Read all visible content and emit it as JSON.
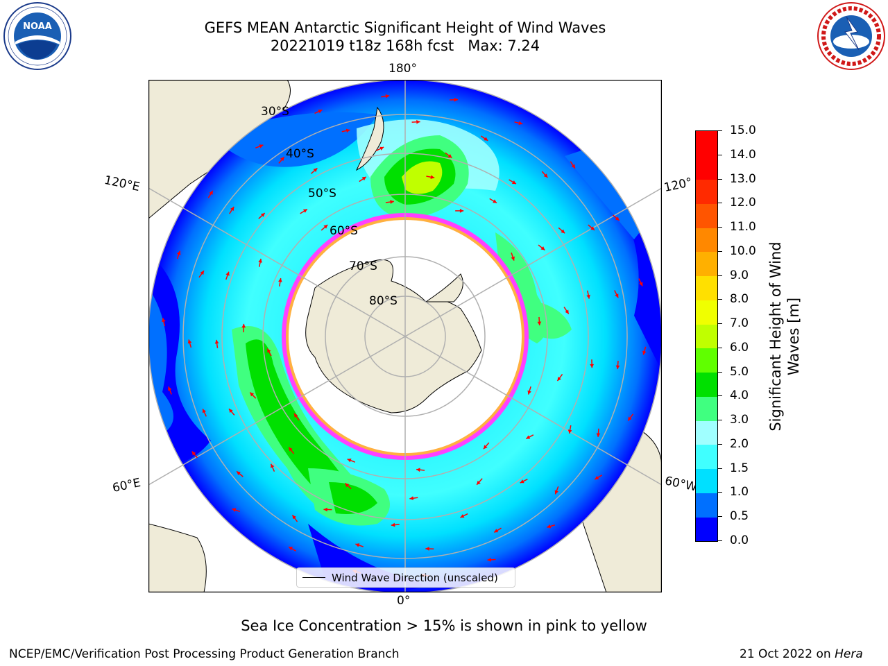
{
  "title": {
    "line1": "GEFS MEAN Antarctic Significant Height of Wind Waves",
    "line2": "20221019 t18z 168h fcst   Max: 7.24"
  },
  "map": {
    "longitude_labels": {
      "top": "180°",
      "bottom": "0°",
      "upper_left": "120°E",
      "upper_right": "120°",
      "lower_left": "60°E",
      "lower_right": "60°W"
    },
    "latitude_labels": [
      "30°S",
      "40°S",
      "50°S",
      "60°S",
      "70°S",
      "80°S"
    ],
    "colors": {
      "land": "#efebd8",
      "ice_edge": "#ff40ff",
      "ice_inner": "#ffb040",
      "arrow": "#ff0000"
    }
  },
  "colorbar": {
    "title": "Significant Height of Wind Waves [m]",
    "ticks": [
      "15.0",
      "14.0",
      "13.0",
      "12.0",
      "11.0",
      "10.0",
      "9.0",
      "8.0",
      "7.0",
      "6.0",
      "5.0",
      "4.0",
      "3.0",
      "2.0",
      "1.5",
      "1.0",
      "0.5",
      "0.0"
    ],
    "colors": [
      "#0000ff",
      "#0070ff",
      "#00e0ff",
      "#40ffff",
      "#a0ffff",
      "#40ff80",
      "#00e000",
      "#60ff00",
      "#c0ff00",
      "#f0ff00",
      "#ffe000",
      "#ffb000",
      "#ff8800",
      "#ff5500",
      "#ff2a00",
      "#ff0000",
      "#ff0000"
    ]
  },
  "legend": {
    "label": "Wind Wave Direction (unscaled)"
  },
  "caption": "Sea Ice Concentration > 15% is shown in pink to yellow",
  "footer": {
    "left": "NCEP/EMC/Verification Post Processing Product Generation Branch",
    "right_date": "21 Oct 2022 on ",
    "right_host": "Hera"
  }
}
